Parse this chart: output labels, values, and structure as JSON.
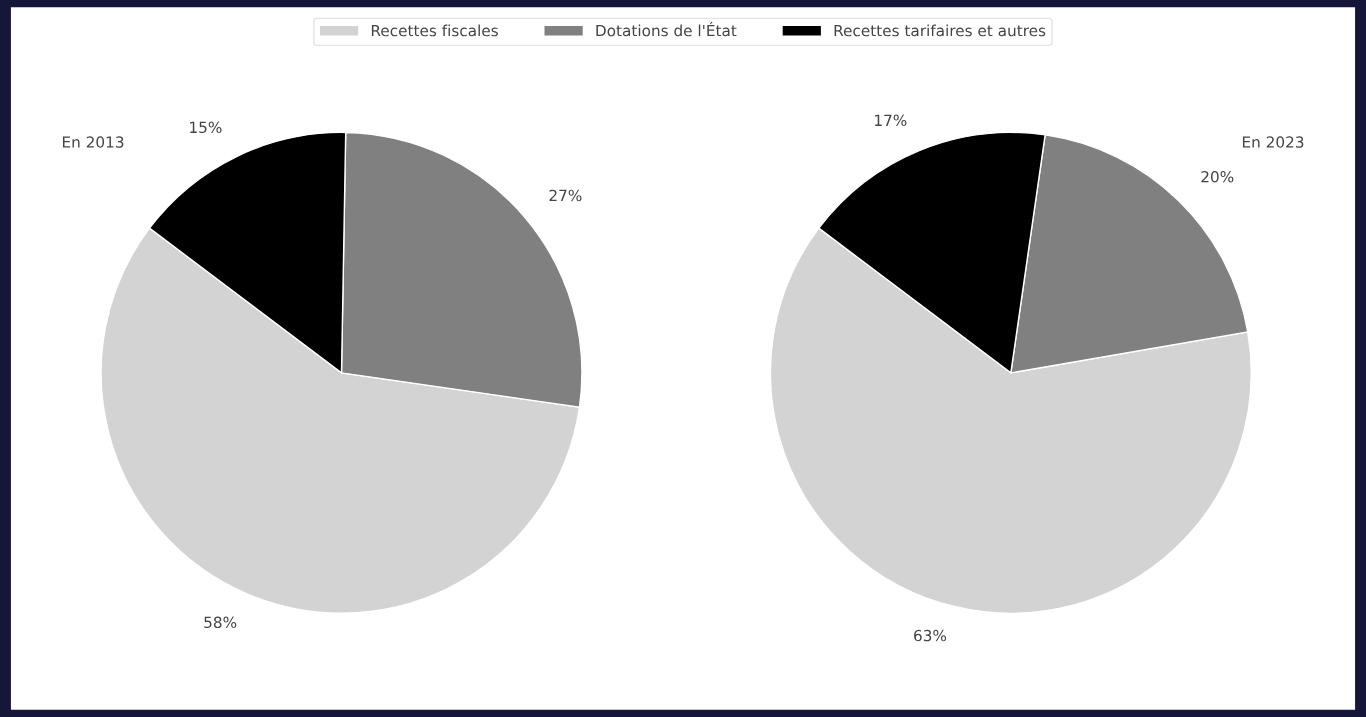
{
  "chart_data": [
    {
      "type": "pie",
      "title": "En 2013",
      "categories": [
        "Recettes fiscales",
        "Dotations de l'État",
        "Recettes tarifaires et autres"
      ],
      "values": [
        58,
        27,
        15
      ],
      "colors": [
        "#d3d3d3",
        "#808080",
        "#000000"
      ],
      "value_labels": [
        "58%",
        "27%",
        "15%"
      ],
      "legend": "top"
    },
    {
      "type": "pie",
      "title": "En 2023",
      "categories": [
        null,
        null,
        null
      ],
      "values": [
        63,
        20,
        17
      ],
      "colors": [
        "#d3d3d3",
        "#808080",
        "#000000"
      ],
      "value_labels": [
        "63%",
        "20%",
        "17%"
      ]
    }
  ]
}
